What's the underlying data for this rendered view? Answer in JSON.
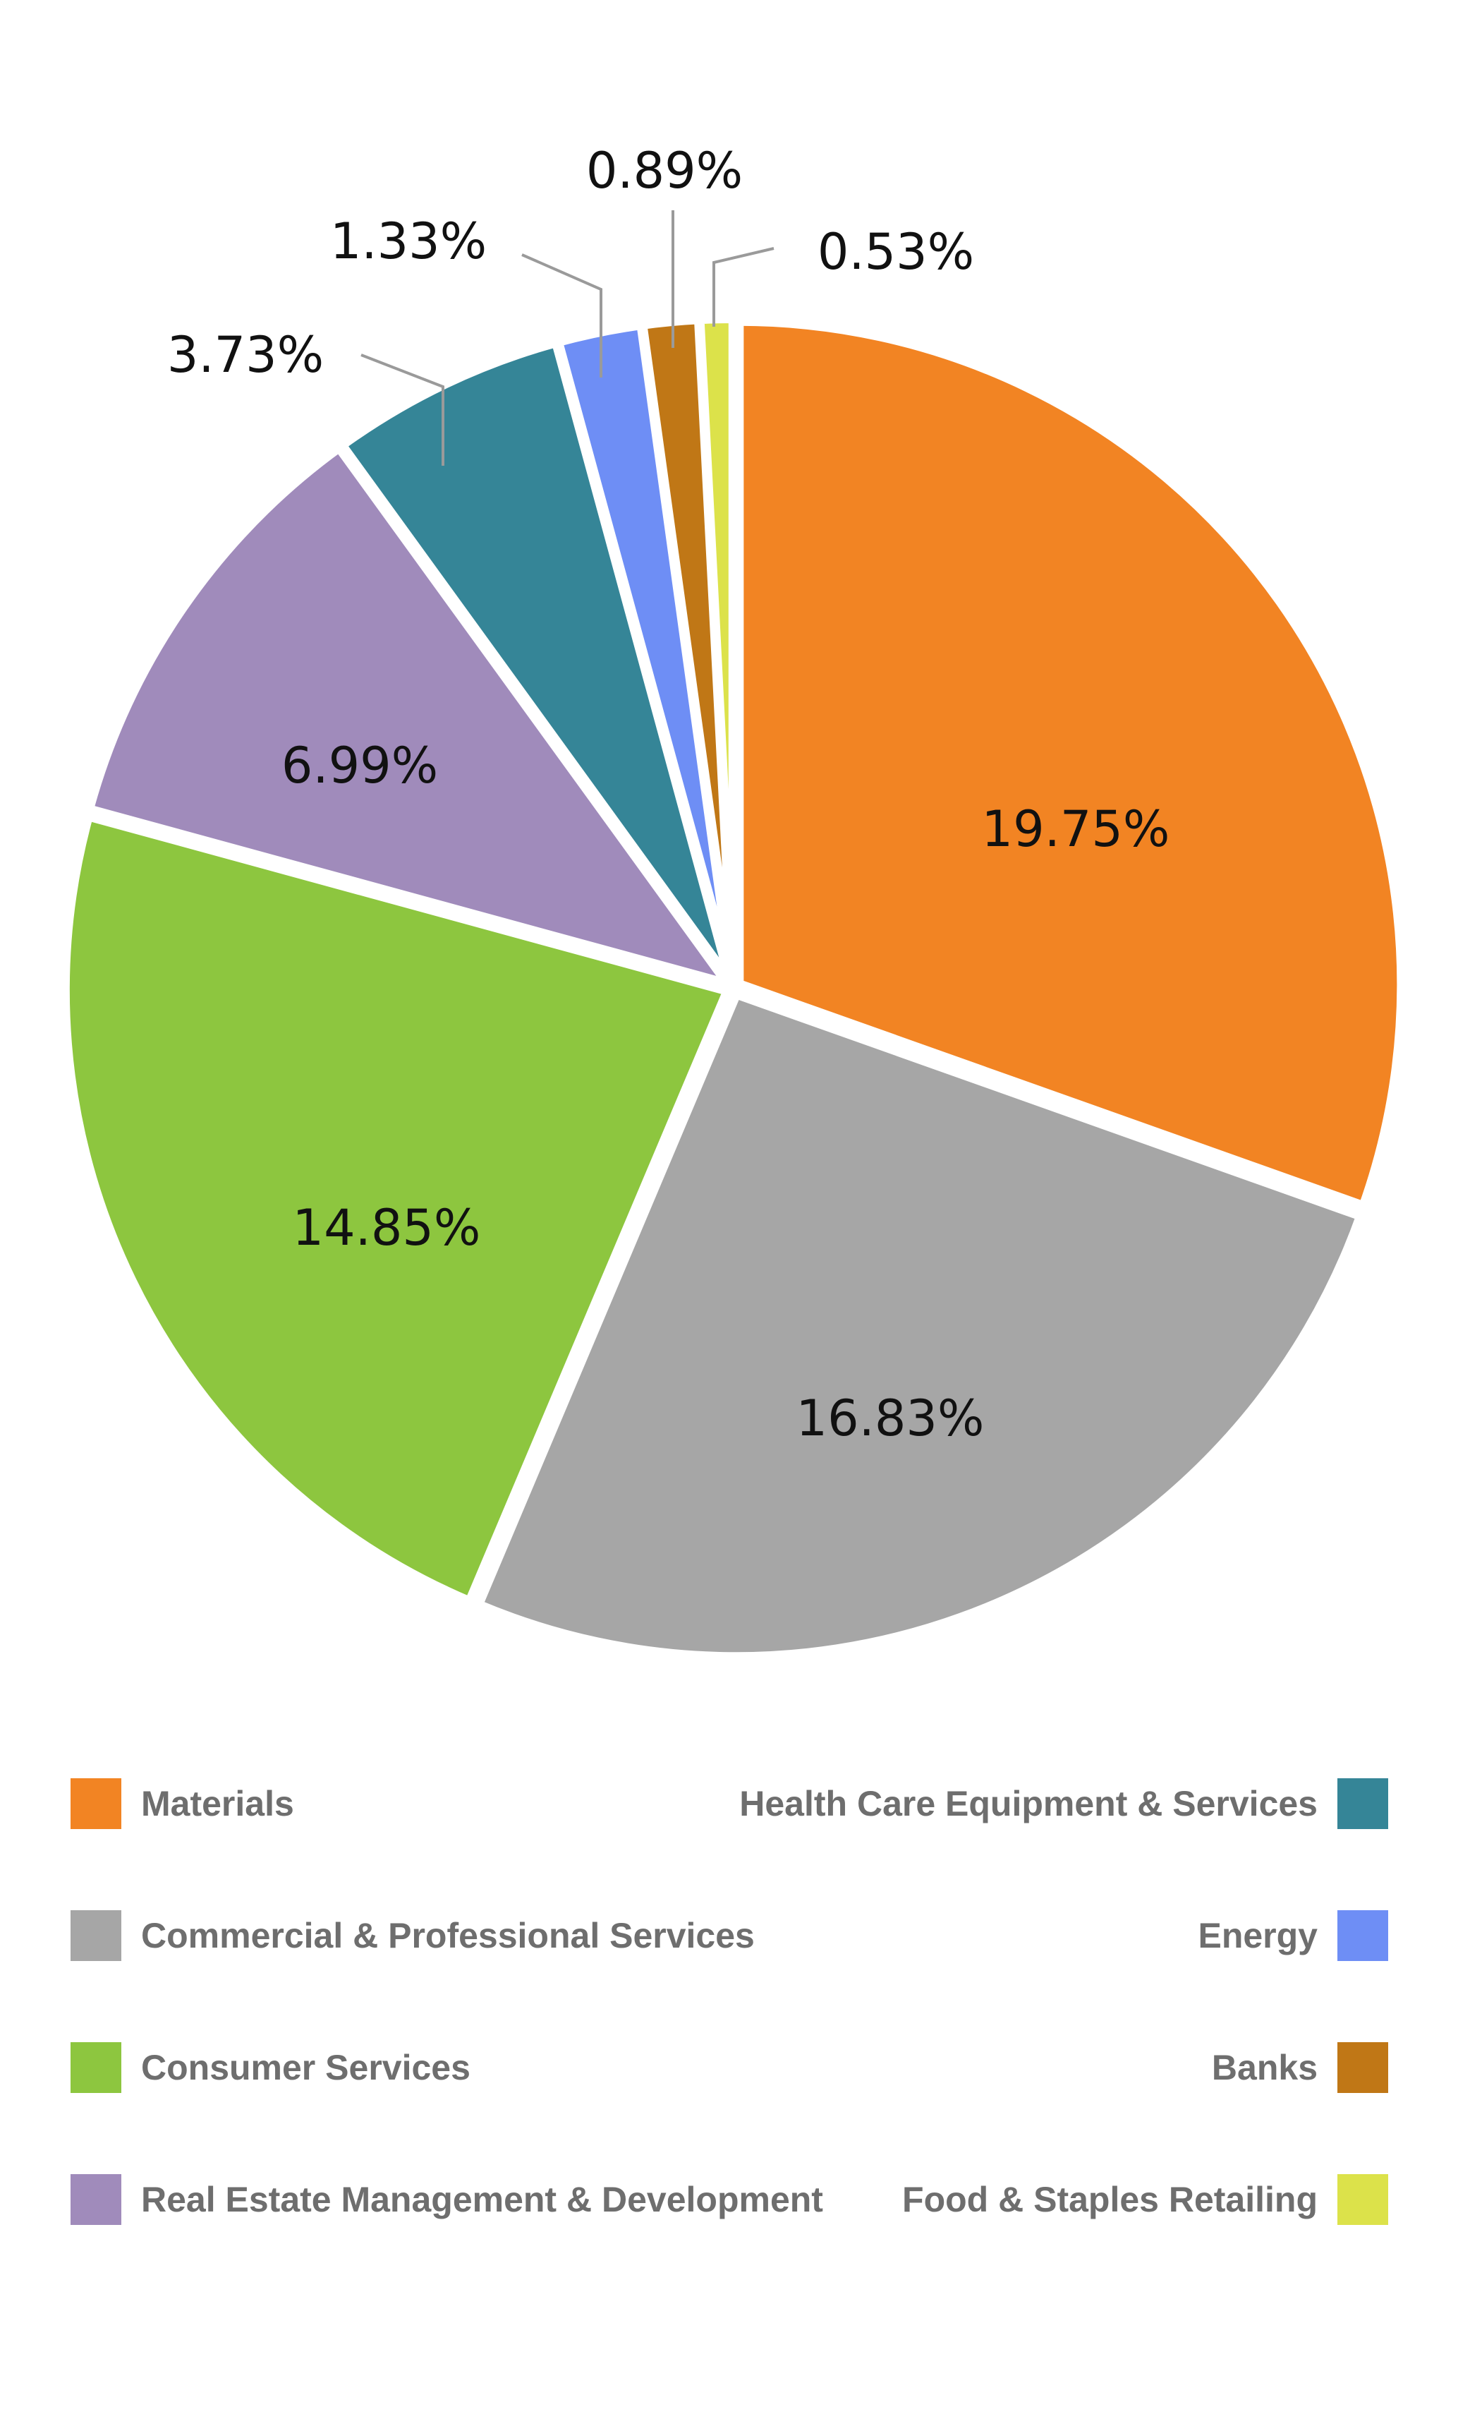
{
  "chart_data": {
    "type": "pie",
    "categories": [
      "Materials",
      "Commercial & Professional Services",
      "Consumer Services",
      "Real Estate Management & Development",
      "Health Care Equipment & Services",
      "Energy",
      "Banks",
      "Food & Staples Retailing"
    ],
    "values": [
      19.75,
      16.83,
      14.85,
      6.99,
      3.73,
      1.33,
      0.89,
      0.53
    ],
    "labels": [
      "19.75%",
      "16.83%",
      "14.85%",
      "6.99%",
      "3.73%",
      "1.33%",
      "0.89%",
      "0.53%"
    ],
    "colors": [
      "#F28423",
      "#A6A6A6",
      "#8DC63F",
      "#A08BBB",
      "#358597",
      "#6E8EF5",
      "#C07716",
      "#DCE24A"
    ],
    "legend_placement": "bottom",
    "start_angle_deg": 0,
    "direction": "clockwise"
  },
  "legend": {
    "left": [
      {
        "label": "Materials",
        "color": "#F28423"
      },
      {
        "label": "Commercial & Professional Services",
        "color": "#A6A6A6"
      },
      {
        "label": "Consumer Services",
        "color": "#8DC63F"
      },
      {
        "label": "Real Estate Management & Development",
        "color": "#A08BBB"
      }
    ],
    "right": [
      {
        "label": "Health Care Equipment & Services",
        "color": "#358597"
      },
      {
        "label": "Energy",
        "color": "#6E8EF5"
      },
      {
        "label": "Banks",
        "color": "#C07716"
      },
      {
        "label": "Food & Staples Retailing",
        "color": "#DCE24A"
      }
    ]
  }
}
